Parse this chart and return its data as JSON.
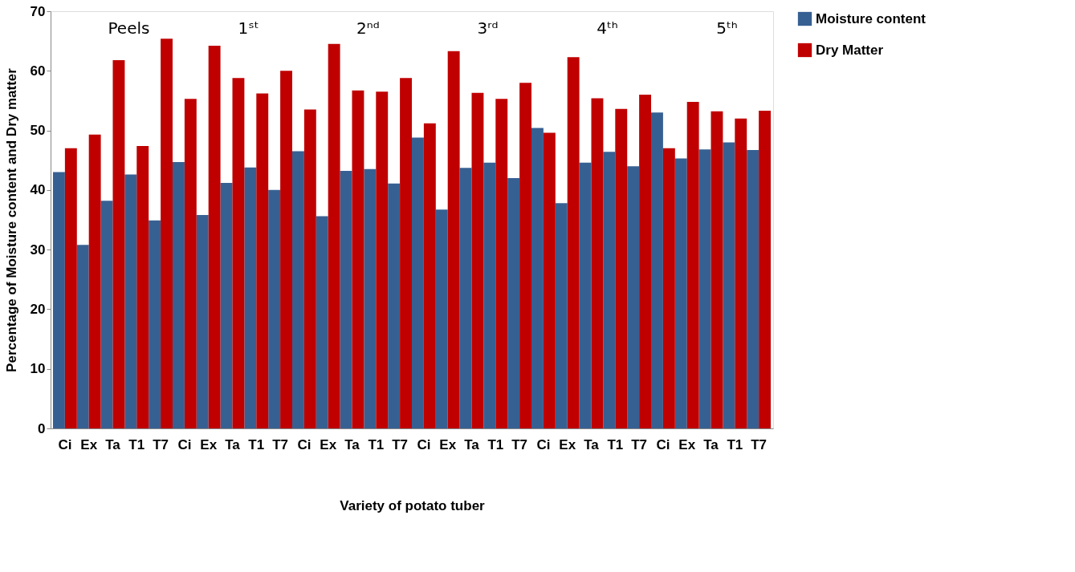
{
  "chart_data": {
    "type": "bar",
    "ylabel": "Percentage of Moisture content and Dry matter",
    "xlabel": "Variety of potato tuber",
    "categories": [
      "Ci",
      "Ex",
      "Ta",
      "T1",
      "T7",
      "Ci",
      "Ex",
      "Ta",
      "T1",
      "T7",
      "Ci",
      "Ex",
      "Ta",
      "T1",
      "T7",
      "Ci",
      "Ex",
      "Ta",
      "T1",
      "T7",
      "Ci",
      "Ex",
      "Ta",
      "T1",
      "T7",
      "Ci",
      "Ex",
      "Ta",
      "T1",
      "T7"
    ],
    "series": [
      {
        "name": "Moisture content",
        "color": "#376092",
        "values": [
          43.0,
          30.8,
          38.2,
          42.6,
          34.9,
          44.7,
          35.8,
          41.2,
          43.8,
          40.0,
          46.5,
          35.6,
          43.2,
          43.5,
          41.1,
          48.8,
          36.7,
          43.7,
          44.6,
          42.0,
          50.4,
          37.8,
          44.6,
          46.4,
          44.0,
          53.0,
          45.3,
          46.8,
          48.0,
          46.7
        ]
      },
      {
        "name": "Dry Matter",
        "color": "#c00000",
        "values": [
          47.0,
          49.3,
          61.8,
          47.4,
          65.4,
          55.3,
          64.2,
          58.8,
          56.2,
          60.0,
          53.5,
          64.5,
          56.7,
          56.5,
          58.8,
          51.2,
          63.3,
          56.3,
          55.3,
          58.0,
          49.6,
          62.3,
          55.4,
          53.6,
          56.0,
          47.0,
          54.8,
          53.2,
          52.0,
          53.3
        ]
      }
    ],
    "ylim": [
      0,
      70
    ],
    "yticks": [
      0,
      10,
      20,
      30,
      40,
      50,
      60,
      70
    ],
    "annotations": [
      "Peels",
      "1ˢᵗ",
      "2ⁿᵈ",
      "3ʳᵈ",
      "4ᵗʰ",
      "5ᵗʰ"
    ],
    "legend": "right",
    "grid": false
  }
}
